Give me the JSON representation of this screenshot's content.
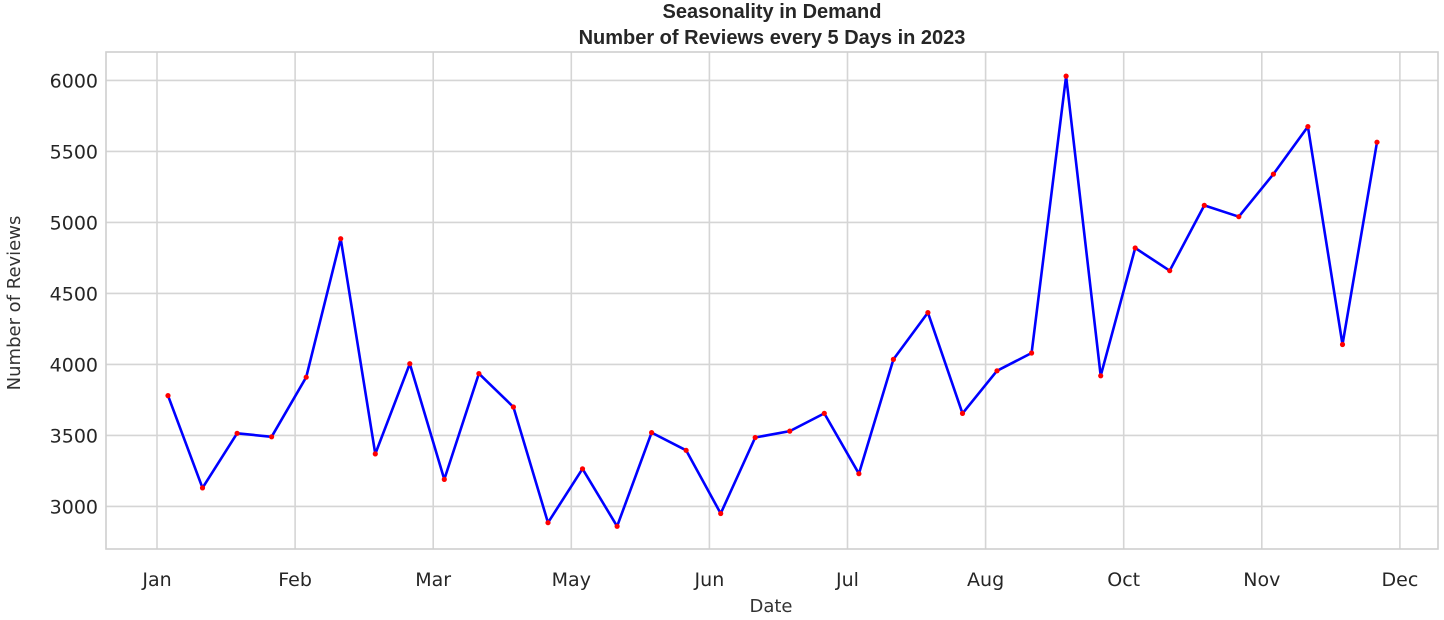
{
  "chart_data": {
    "type": "line",
    "title": "Seasonality in Demand",
    "subtitle": "Number of Reviews every 5 Days in 2023",
    "xlabel": "Date",
    "ylabel": "Number of Reviews",
    "grid": true,
    "ylim": [
      2700,
      6200
    ],
    "yticks": [
      3000,
      3500,
      4000,
      4500,
      5000,
      5500,
      6000
    ],
    "xticks": [
      "Jan",
      "Feb",
      "Mar",
      "May",
      "Jun",
      "Jul",
      "Aug",
      "Oct",
      "Nov",
      "Dec"
    ],
    "colors": {
      "line": "#0000ff",
      "marker": "#ff0000"
    },
    "series": [
      {
        "values": [
          3780,
          3130,
          3515,
          3490,
          3910,
          4885,
          3370,
          4005,
          3190,
          3935,
          3700,
          2885,
          3265,
          2860,
          3520,
          3395,
          2950,
          3485,
          3530,
          3655,
          3230,
          4035,
          4365,
          3655,
          3955,
          4080,
          6030,
          3920,
          4820,
          4660,
          5120,
          5040,
          5340,
          5675,
          4140,
          5565
        ]
      }
    ]
  }
}
